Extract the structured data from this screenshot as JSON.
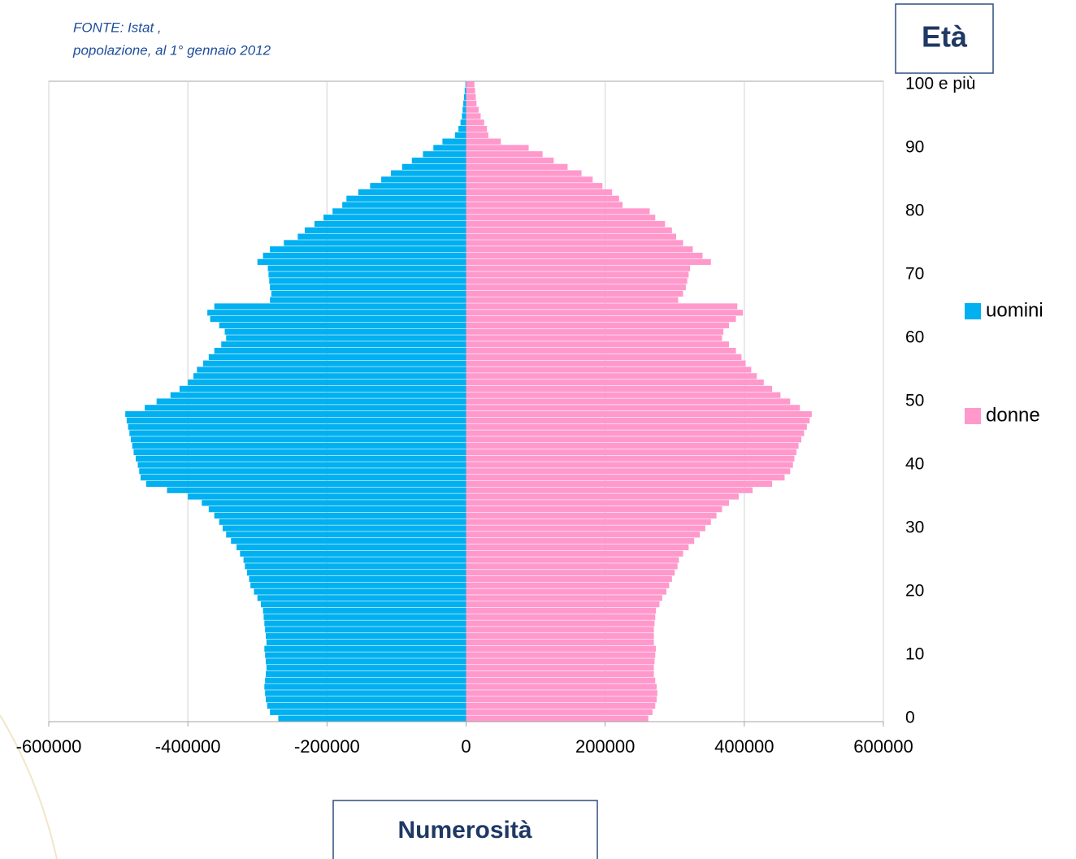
{
  "chart_data": {
    "type": "bar",
    "orientation": "horizontal",
    "source": [
      "FONTE: Istat ,",
      "popolazione, al 1° gennaio 2012"
    ],
    "x_label": "Numerosità",
    "y_label": "Età",
    "categories": [
      "0",
      null,
      null,
      null,
      null,
      null,
      null,
      null,
      null,
      null,
      "10",
      null,
      null,
      null,
      null,
      null,
      null,
      null,
      null,
      null,
      "20",
      null,
      null,
      null,
      null,
      null,
      null,
      null,
      null,
      null,
      "30",
      null,
      null,
      null,
      null,
      null,
      null,
      null,
      null,
      null,
      "40",
      null,
      null,
      null,
      null,
      null,
      null,
      null,
      null,
      null,
      "50",
      null,
      null,
      null,
      null,
      null,
      null,
      null,
      null,
      null,
      "60",
      null,
      null,
      null,
      null,
      null,
      null,
      null,
      null,
      null,
      "70",
      null,
      null,
      null,
      null,
      null,
      null,
      null,
      null,
      null,
      "80",
      null,
      null,
      null,
      null,
      null,
      null,
      null,
      null,
      null,
      "90",
      null,
      null,
      null,
      null,
      null,
      null,
      null,
      null,
      null,
      "100 e più"
    ],
    "series": [
      {
        "name": "uomini",
        "color": "#00b0f0",
        "values": [
          -270000,
          -282000,
          -286000,
          -288000,
          -289000,
          -290000,
          -289000,
          -288000,
          -287000,
          -288000,
          -289000,
          -290000,
          -287000,
          -288000,
          -289000,
          -290000,
          -291000,
          -292000,
          -295000,
          -300000,
          -305000,
          -310000,
          -312000,
          -315000,
          -318000,
          -320000,
          -325000,
          -330000,
          -338000,
          -345000,
          -350000,
          -355000,
          -362000,
          -370000,
          -380000,
          -400000,
          -430000,
          -460000,
          -468000,
          -470000,
          -472000,
          -475000,
          -478000,
          -480000,
          -482000,
          -484000,
          -486000,
          -488000,
          -490000,
          -462000,
          -445000,
          -425000,
          -412000,
          -400000,
          -392000,
          -387000,
          -378000,
          -370000,
          -362000,
          -352000,
          -345000,
          -347000,
          -355000,
          -368000,
          -372000,
          -362000,
          -282000,
          -280000,
          -282000,
          -283000,
          -284000,
          -285000,
          -300000,
          -292000,
          -282000,
          -262000,
          -242000,
          -232000,
          -218000,
          -205000,
          -192000,
          -178000,
          -172000,
          -155000,
          -138000,
          -122000,
          -108000,
          -92000,
          -78000,
          -62000,
          -47000,
          -34000,
          -16000,
          -11000,
          -8000,
          -6000,
          -5000,
          -4000,
          -3000,
          -2000,
          -1000
        ]
      },
      {
        "name": "donne",
        "color": "#ff99cc",
        "values": [
          262000,
          268000,
          272000,
          274000,
          275000,
          274000,
          272000,
          270000,
          270000,
          271000,
          272000,
          273000,
          270000,
          270000,
          270000,
          271000,
          272000,
          273000,
          278000,
          282000,
          288000,
          292000,
          296000,
          300000,
          304000,
          306000,
          312000,
          320000,
          328000,
          336000,
          344000,
          352000,
          360000,
          368000,
          378000,
          392000,
          412000,
          440000,
          458000,
          466000,
          470000,
          472000,
          475000,
          478000,
          482000,
          486000,
          490000,
          494000,
          497000,
          480000,
          466000,
          452000,
          440000,
          428000,
          418000,
          410000,
          402000,
          396000,
          388000,
          378000,
          368000,
          370000,
          378000,
          388000,
          398000,
          390000,
          305000,
          312000,
          316000,
          318000,
          320000,
          322000,
          352000,
          340000,
          326000,
          312000,
          302000,
          296000,
          286000,
          272000,
          264000,
          225000,
          220000,
          210000,
          196000,
          182000,
          166000,
          146000,
          126000,
          110000,
          90000,
          50000,
          32000,
          30000,
          26000,
          21000,
          18000,
          15000,
          14000,
          13000,
          12000
        ]
      }
    ],
    "xlim": [
      -600000,
      600000
    ],
    "xticks": [
      -600000,
      -400000,
      -200000,
      0,
      200000,
      400000,
      600000
    ],
    "grid": true,
    "legend": "right"
  }
}
